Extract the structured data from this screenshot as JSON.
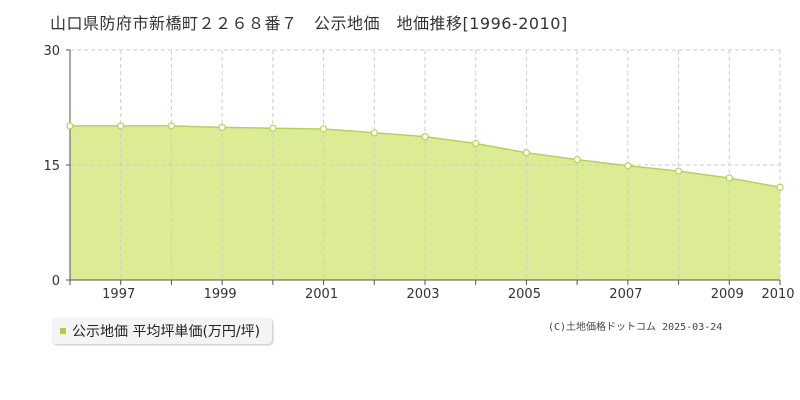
{
  "page_title": "山口県防府市新橋町２２６８番７　公示地価　地価推移[1996-2010]",
  "legend_label": "公示地価 平均坪単価(万円/坪)",
  "credit": "(C)土地価格ドットコム 2025-03-24",
  "colors": {
    "fill": "#dcec94",
    "line": "#b5d64a",
    "point_fill": "#ffffff",
    "grid": "#cccccc",
    "axis": "#555555",
    "legend_swatch": "#a8d435"
  },
  "chart_data": {
    "type": "area",
    "title": "山口県防府市新橋町２２６８番７　公示地価　地価推移[1996-2010]",
    "xlabel": "",
    "ylabel": "",
    "x": [
      1996,
      1997,
      1998,
      1999,
      2000,
      2001,
      2002,
      2003,
      2004,
      2005,
      2006,
      2007,
      2008,
      2009,
      2010
    ],
    "xticks": [
      1997,
      1999,
      2001,
      2003,
      2005,
      2007,
      2009,
      2010
    ],
    "yticks": [
      0,
      15,
      30
    ],
    "ylim": [
      0,
      30
    ],
    "xlim": [
      1996,
      2010
    ],
    "grid": true,
    "series": [
      {
        "name": "公示地価 平均坪単価(万円/坪)",
        "values": [
          20.1,
          20.1,
          20.1,
          19.9,
          19.8,
          19.7,
          19.2,
          18.7,
          17.8,
          16.6,
          15.7,
          14.9,
          14.2,
          13.3,
          12.1
        ]
      }
    ]
  }
}
